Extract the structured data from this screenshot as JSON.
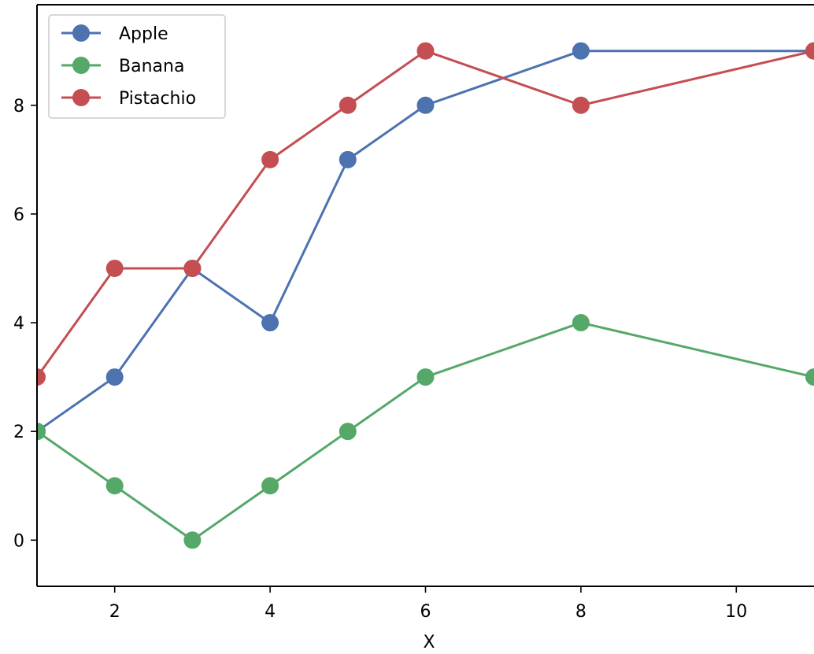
{
  "chart_data": {
    "type": "line",
    "title": "",
    "xlabel": "X",
    "ylabel": "",
    "xlim": [
      1,
      11
    ],
    "ylim": [
      -0.85,
      9.85
    ],
    "x_ticks": [
      2,
      4,
      6,
      8,
      10
    ],
    "y_ticks": [
      0,
      2,
      4,
      6,
      8
    ],
    "grid": false,
    "legend_position": "top-left",
    "x": [
      1,
      2,
      3,
      4,
      5,
      6,
      8,
      11
    ],
    "series": [
      {
        "name": "Apple",
        "color": "#4c72b0",
        "values": [
          2,
          3,
          5,
          4,
          7,
          8,
          9,
          9
        ]
      },
      {
        "name": "Banana",
        "color": "#55a868",
        "values": [
          2,
          1,
          0,
          1,
          2,
          3,
          4,
          3
        ]
      },
      {
        "name": "Pistachio",
        "color": "#c44e52",
        "values": [
          3,
          5,
          5,
          7,
          8,
          9,
          8,
          9
        ]
      }
    ]
  }
}
